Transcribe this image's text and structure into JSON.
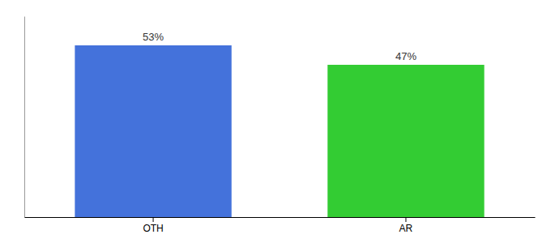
{
  "chart_data": {
    "type": "bar",
    "categories": [
      "OTH",
      "AR"
    ],
    "values": [
      53,
      47
    ],
    "value_labels": [
      "53%",
      "47%"
    ],
    "colors": [
      "#4472db",
      "#33cc33"
    ],
    "ylim": [
      0,
      62
    ],
    "data_labels": true,
    "tick_labels": "x"
  }
}
